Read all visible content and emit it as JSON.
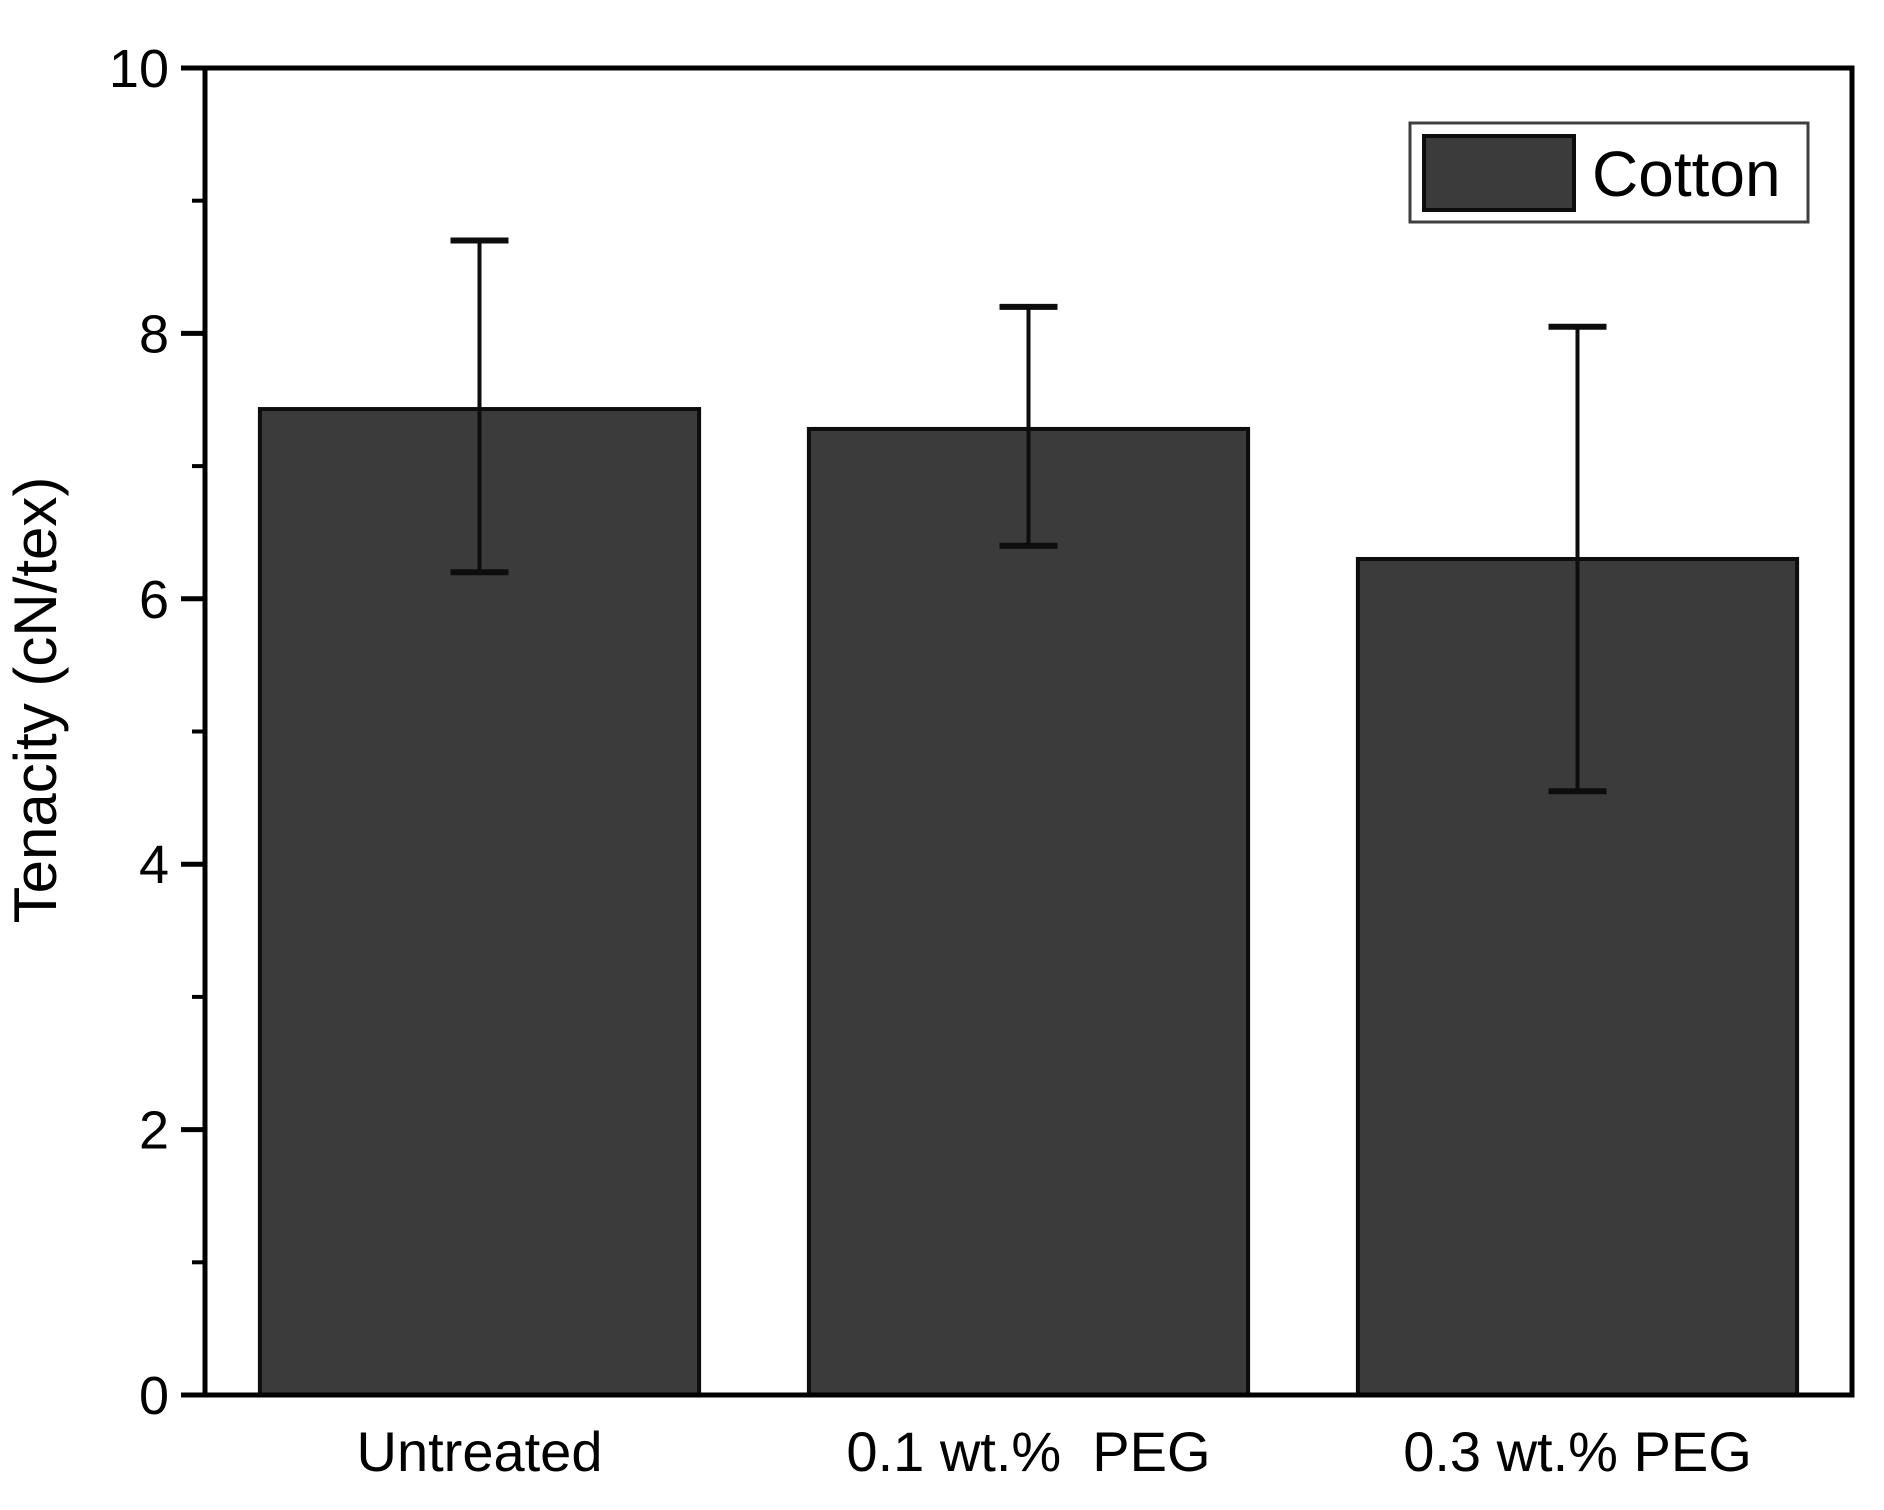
{
  "chart_data": {
    "type": "bar",
    "title": "",
    "categories": [
      "Untreated",
      "0.1 wt.%  PEG",
      "0.3 wt.% PEG"
    ],
    "series": [
      {
        "name": "Cotton",
        "values": [
          7.43,
          7.28,
          6.3
        ],
        "error_low": [
          6.2,
          6.4,
          4.55
        ],
        "error_high": [
          8.7,
          8.2,
          8.05
        ]
      }
    ],
    "xlabel": "",
    "ylabel": "Tenacity (cN/tex)",
    "ylim": [
      0,
      10
    ],
    "yticks_major": [
      0,
      2,
      4,
      6,
      8,
      10
    ],
    "ytick_labels": [
      "0",
      "2",
      "4",
      "6",
      "8",
      "10"
    ],
    "yticks_minor": [
      1,
      3,
      5,
      7,
      9
    ],
    "grid": false,
    "legend": {
      "position": "top-right",
      "entries": [
        "Cotton"
      ]
    },
    "colors": {
      "bar_fill": "#3b3b3b",
      "bar_border": "#0d0d0d",
      "error_bar": "#0d0d0d",
      "axis": "#000000",
      "text": "#000000",
      "legend_border": "#3f3f3f",
      "background": "#ffffff"
    }
  }
}
